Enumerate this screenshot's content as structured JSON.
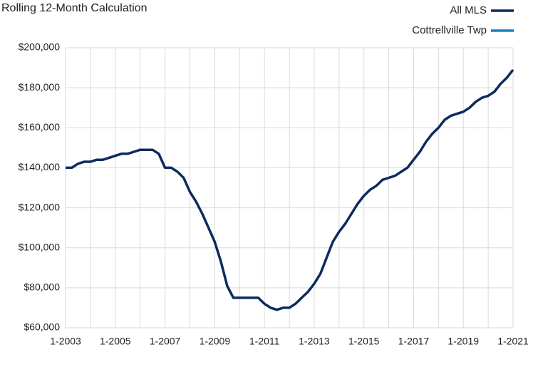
{
  "chart_data": {
    "type": "line",
    "title": "Rolling 12-Month Calculation",
    "x": [
      "1-2003",
      "4-2003",
      "7-2003",
      "10-2003",
      "1-2004",
      "4-2004",
      "7-2004",
      "10-2004",
      "1-2005",
      "4-2005",
      "7-2005",
      "10-2005",
      "1-2006",
      "4-2006",
      "7-2006",
      "10-2006",
      "1-2007",
      "4-2007",
      "7-2007",
      "10-2007",
      "1-2008",
      "4-2008",
      "7-2008",
      "10-2008",
      "1-2009",
      "4-2009",
      "7-2009",
      "10-2009",
      "1-2010",
      "4-2010",
      "7-2010",
      "10-2010",
      "1-2011",
      "4-2011",
      "7-2011",
      "10-2011",
      "1-2012",
      "4-2012",
      "7-2012",
      "10-2012",
      "1-2013",
      "4-2013",
      "7-2013",
      "10-2013",
      "1-2014",
      "4-2014",
      "7-2014",
      "10-2014",
      "1-2015",
      "4-2015",
      "7-2015",
      "10-2015",
      "1-2016",
      "4-2016",
      "7-2016",
      "10-2016",
      "1-2017",
      "4-2017",
      "7-2017",
      "10-2017",
      "1-2018",
      "4-2018",
      "7-2018",
      "10-2018",
      "1-2019",
      "4-2019",
      "7-2019",
      "10-2019",
      "1-2020",
      "4-2020",
      "7-2020",
      "10-2020",
      "1-2021"
    ],
    "series": [
      {
        "name": "All MLS",
        "color": "#0d2b5e",
        "values": [
          140000,
          140000,
          142000,
          143000,
          143000,
          144000,
          144000,
          145000,
          146000,
          147000,
          147000,
          148000,
          149000,
          149000,
          149000,
          147000,
          140000,
          140000,
          138000,
          135000,
          128000,
          123000,
          117000,
          110000,
          103000,
          93000,
          81000,
          75000,
          75000,
          75000,
          75000,
          75000,
          72000,
          70000,
          69000,
          70000,
          70000,
          72000,
          75000,
          78000,
          82000,
          87000,
          95000,
          103000,
          108000,
          112000,
          117000,
          122000,
          126000,
          129000,
          131000,
          134000,
          135000,
          136000,
          138000,
          140000,
          144000,
          148000,
          153000,
          157000,
          160000,
          164000,
          166000,
          167000,
          168000,
          170000,
          173000,
          175000,
          176000,
          178000,
          182000,
          185000,
          189000
        ]
      },
      {
        "name": "Cottrellville Twp",
        "color": "#1a7fc1",
        "values": [
          null,
          null,
          null,
          null,
          null,
          null,
          null,
          null,
          null,
          null,
          null,
          null,
          null,
          null,
          null,
          null,
          null,
          null,
          null,
          null,
          null,
          null,
          null,
          null,
          null,
          null,
          null,
          null,
          null,
          null,
          null,
          null,
          null,
          null,
          null,
          null,
          null,
          null,
          null,
          null,
          null,
          null,
          null,
          null,
          null,
          null,
          null,
          null,
          null,
          null,
          null,
          null,
          null,
          null,
          null,
          null,
          null,
          null,
          null,
          null,
          null,
          null,
          null,
          null,
          null,
          null,
          null,
          null,
          null,
          null,
          null,
          null,
          null
        ]
      }
    ],
    "ylim": [
      60000,
      200000
    ],
    "yticks": [
      {
        "value": 60000,
        "label": "$60,000"
      },
      {
        "value": 80000,
        "label": "$80,000"
      },
      {
        "value": 100000,
        "label": "$100,000"
      },
      {
        "value": 120000,
        "label": "$120,000"
      },
      {
        "value": 140000,
        "label": "$140,000"
      },
      {
        "value": 160000,
        "label": "$160,000"
      },
      {
        "value": 180000,
        "label": "$180,000"
      },
      {
        "value": 200000,
        "label": "$200,000"
      }
    ],
    "grid": true
  }
}
